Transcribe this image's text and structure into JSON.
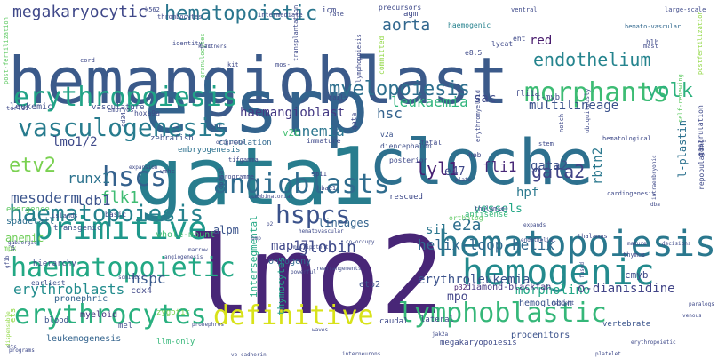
{
  "words": [
    {
      "text": "hemangioblast",
      "color": "#3b5a8a"
    },
    {
      "text": "etsrp",
      "color": "#33638d"
    },
    {
      "text": "gata1",
      "color": "#287d8e"
    },
    {
      "text": "cloche",
      "color": "#2d708e"
    },
    {
      "text": "lmo2",
      "color": "#482677"
    },
    {
      "text": "hematopoiesis",
      "color": "#2a788e"
    },
    {
      "text": "hemogenic",
      "color": "#238a8d"
    },
    {
      "text": "haematopoietic",
      "color": "#22a884"
    },
    {
      "text": "erythropoiesis",
      "color": "#20a386"
    },
    {
      "text": "primitive",
      "color": "#1f988b"
    },
    {
      "text": "definitive",
      "color": "#d8e219"
    },
    {
      "text": "lymphoblastic",
      "color": "#35b779"
    },
    {
      "text": "erythrocytes",
      "color": "#2ab07f"
    },
    {
      "text": "morphants",
      "color": "#3dbc74"
    },
    {
      "text": "angioblasts",
      "color": "#2f6c8e"
    },
    {
      "text": "hscs",
      "color": "#34618d"
    },
    {
      "text": "vasculogenesis",
      "color": "#287c8e"
    },
    {
      "text": "haematopoiesis",
      "color": "#26828e"
    },
    {
      "text": "hspcs",
      "color": "#3b528b"
    },
    {
      "text": "myelopoiesis",
      "color": "#2e6f8e"
    },
    {
      "text": "endothelium",
      "color": "#25848e"
    },
    {
      "text": "hematopoietic",
      "color": "#2a768e"
    },
    {
      "text": "megakaryocytic",
      "color": "#3f4889"
    },
    {
      "text": "aorta",
      "color": "#31678e"
    },
    {
      "text": "yolk",
      "color": "#2db27d"
    },
    {
      "text": "gata2",
      "color": "#414487"
    },
    {
      "text": "lyl1",
      "color": "#482173"
    },
    {
      "text": "etv2",
      "color": "#7ad151"
    },
    {
      "text": "e2a",
      "color": "#2e6e8e"
    },
    {
      "text": "helix-loop-helix",
      "color": "#31688e"
    },
    {
      "text": "globin",
      "color": "#3e4a89"
    },
    {
      "text": "flk1",
      "color": "#3fbc73"
    },
    {
      "text": "runx1",
      "color": "#2c728e"
    },
    {
      "text": "mesoderm",
      "color": "#3a548c"
    },
    {
      "text": "ldb1",
      "color": "#3b518b"
    },
    {
      "text": "lmo1/2",
      "color": "#3e4989"
    },
    {
      "text": "anemia",
      "color": "#2b758e"
    },
    {
      "text": "haemangioblast",
      "color": "#443983"
    },
    {
      "text": "hsc",
      "color": "#33628d"
    },
    {
      "text": "leukaemia",
      "color": "#2fb47c"
    },
    {
      "text": "multilineage",
      "color": "#3b528b"
    },
    {
      "text": "sac",
      "color": "#3e4a89"
    },
    {
      "text": "hspc",
      "color": "#38588c"
    },
    {
      "text": "erythroblasts",
      "color": "#228c8d"
    },
    {
      "text": "erythroleukemia",
      "color": "#3b528b"
    },
    {
      "text": "morpholino",
      "color": "#21a685"
    },
    {
      "text": "o-dianisidine",
      "color": "#414487"
    },
    {
      "text": "vessels",
      "color": "#22a785"
    },
    {
      "text": "hpf",
      "color": "#2a788e"
    },
    {
      "text": "fli1",
      "color": "#482878"
    },
    {
      "text": "sil",
      "color": "#2a768e"
    },
    {
      "text": "lineages",
      "color": "#33638d"
    },
    {
      "text": "map17",
      "color": "#3f4788"
    },
    {
      "text": "alpm",
      "color": "#3a538b"
    },
    {
      "text": "anemic",
      "color": "#6ece58"
    },
    {
      "text": "v2b",
      "color": "#43bf71"
    },
    {
      "text": "mpo",
      "color": "#414487"
    },
    {
      "text": "cmyb",
      "color": "#3e4a89"
    },
    {
      "text": "e47",
      "color": "#3f4788"
    },
    {
      "text": "gata2",
      "color": "#3b528b"
    },
    {
      "text": "red",
      "color": "#481b6d"
    },
    {
      "text": "rbtn2",
      "color": "#2a788e"
    },
    {
      "text": "l-plastin",
      "color": "#2c718e"
    },
    {
      "text": "cdx4",
      "color": "#3f4788"
    },
    {
      "text": "myeloid",
      "color": "#46337e"
    },
    {
      "text": "mel",
      "color": "#3d4d8a"
    },
    {
      "text": "zygotic",
      "color": "#7ad151"
    },
    {
      "text": "leukemogenesis",
      "color": "#33638d"
    },
    {
      "text": "llm-only",
      "color": "#35b779"
    },
    {
      "text": "lateral",
      "color": "#3e4989"
    },
    {
      "text": "caudal",
      "color": "#3e4989"
    },
    {
      "text": "vertebrate",
      "color": "#3a548c"
    },
    {
      "text": "progenitors",
      "color": "#3b528b"
    },
    {
      "text": "megakaryopoiesis",
      "color": "#3e4a89"
    },
    {
      "text": "diamond-blackfan",
      "color": "#453781"
    },
    {
      "text": "p32",
      "color": "#481a6c"
    },
    {
      "text": "eto2",
      "color": "#3b528b"
    },
    {
      "text": "hemoglobin",
      "color": "#3b528b"
    },
    {
      "text": "thymocytes",
      "color": "#20a386"
    },
    {
      "text": "ontogeny",
      "color": "#31688e"
    },
    {
      "text": "intersegmental",
      "color": "#22a884"
    },
    {
      "text": "earliest",
      "color": "#3d4e8a"
    },
    {
      "text": "pronephric",
      "color": "#33638d"
    },
    {
      "text": "hierarchy",
      "color": "#3d4e8a"
    },
    {
      "text": "whole-mount",
      "color": "#40bd72"
    },
    {
      "text": "blood",
      "color": "#3b528b"
    },
    {
      "text": "ets",
      "color": "#90d743"
    },
    {
      "text": "spadetail",
      "color": "#2e6e8e"
    },
    {
      "text": "mpx",
      "color": "#75d054"
    },
    {
      "text": "emergence",
      "color": "#5ec962"
    },
    {
      "text": "embryogenesis",
      "color": "#2c718e"
    },
    {
      "text": "basic",
      "color": "#3e4989"
    },
    {
      "text": "transgenic",
      "color": "#3b528b"
    },
    {
      "text": "zebrafish",
      "color": "#3b528b"
    },
    {
      "text": "vasculature",
      "color": "#3d4e8a"
    },
    {
      "text": "leukemic",
      "color": "#3d4e8a"
    },
    {
      "text": "circulation",
      "color": "#31688e"
    },
    {
      "text": "cht",
      "color": "#3b528b"
    },
    {
      "text": "fetal",
      "color": "#3e4989"
    },
    {
      "text": "posterior",
      "color": "#3e4989"
    },
    {
      "text": "immature",
      "color": "#3e4989"
    },
    {
      "text": "v2a",
      "color": "#3b528b"
    },
    {
      "text": "antisense",
      "color": "#35b779"
    },
    {
      "text": "rescued",
      "color": "#3e4989"
    },
    {
      "text": "ortholog",
      "color": "#5ec962"
    },
    {
      "text": "heb",
      "color": "#3e4989"
    },
    {
      "text": "diencephalon",
      "color": "#3d4e8a"
    },
    {
      "text": "gata",
      "color": "#3e4989"
    },
    {
      "text": "committed",
      "color": "#90d743"
    },
    {
      "text": "agm",
      "color": "#3e4989"
    },
    {
      "text": "icm",
      "color": "#3e4989"
    },
    {
      "text": "precursors",
      "color": "#3e4989"
    },
    {
      "text": "haemogenic",
      "color": "#26828e"
    },
    {
      "text": "c-myb",
      "color": "#3e4989"
    },
    {
      "text": "fli1a",
      "color": "#3e4989"
    },
    {
      "text": "lycat",
      "color": "#3e4989"
    },
    {
      "text": "eht",
      "color": "#3e4989"
    },
    {
      "text": "e8.5",
      "color": "#3e4989"
    },
    {
      "text": "ventral",
      "color": "#3e4989"
    },
    {
      "text": "fate",
      "color": "#3e4989"
    },
    {
      "text": "intermediate",
      "color": "#3e4989"
    },
    {
      "text": "thrombocytes",
      "color": "#3e4989"
    },
    {
      "text": "k562",
      "color": "#3e4989"
    },
    {
      "text": "hemato-vascular",
      "color": "#31688e"
    },
    {
      "text": "hlh",
      "color": "#3e4989"
    },
    {
      "text": "mast",
      "color": "#3e4989"
    },
    {
      "text": "large-scale",
      "color": "#3e4989"
    },
    {
      "text": "postfertilization",
      "color": "#90d743"
    },
    {
      "text": "self-renewing",
      "color": "#5ec962"
    },
    {
      "text": "gastrulation",
      "color": "#3e4989"
    },
    {
      "text": "repopulating",
      "color": "#3e4989"
    },
    {
      "text": "stem",
      "color": "#3e4989"
    },
    {
      "text": "hematological",
      "color": "#3e4989"
    },
    {
      "text": "ubiquitously",
      "color": "#3e4989"
    },
    {
      "text": "notch",
      "color": "#3e4989"
    },
    {
      "text": "granulocytes",
      "color": "#5ec962"
    },
    {
      "text": "hoxa9a",
      "color": "#3e4989"
    },
    {
      "text": "cd34",
      "color": "#3e4989"
    },
    {
      "text": "embryos",
      "color": "#3e4989"
    },
    {
      "text": "terl19",
      "color": "#3e4989"
    },
    {
      "text": "post-fertilization",
      "color": "#5ec962"
    },
    {
      "text": "identity",
      "color": "#3e4989"
    },
    {
      "text": "cord",
      "color": "#3e4989"
    },
    {
      "text": "kit",
      "color": "#3e4989"
    },
    {
      "text": "lymphopoiesis",
      "color": "#3e4989"
    },
    {
      "text": "mos-",
      "color": "#3e4989"
    },
    {
      "text": "transplantation",
      "color": "#3e4989"
    },
    {
      "text": "erythromyeloid",
      "color": "#3e4989"
    },
    {
      "text": "tails",
      "color": "#3e4989"
    },
    {
      "text": "tifgamma",
      "color": "#3e4989"
    },
    {
      "text": "programme",
      "color": "#3e4989"
    },
    {
      "text": "hbae1",
      "color": "#3e4989"
    },
    {
      "text": "spi1",
      "color": "#3e4989"
    },
    {
      "text": "vmhc",
      "color": "#3e4989"
    },
    {
      "text": "islands",
      "color": "#3e4989"
    },
    {
      "text": "gabaergic",
      "color": "#3e4989"
    },
    {
      "text": "combinatorial",
      "color": "#3e4989"
    },
    {
      "text": "dorsal",
      "color": "#3e4989"
    },
    {
      "text": "thalamic",
      "color": "#3e4989"
    },
    {
      "text": "thalamus",
      "color": "#3e4989"
    },
    {
      "text": "cardiogenesis",
      "color": "#3e4989"
    },
    {
      "text": "intraembryonic",
      "color": "#3e4989"
    },
    {
      "text": "fused",
      "color": "#3e4989"
    },
    {
      "text": "thymus",
      "color": "#3e4989"
    },
    {
      "text": "expands",
      "color": "#3e4989"
    },
    {
      "text": "dba",
      "color": "#3e4989"
    },
    {
      "text": "co-occupy",
      "color": "#3e4989"
    },
    {
      "text": "hematovascular",
      "color": "#3e4989"
    },
    {
      "text": "rearrangements",
      "color": "#3e4989"
    },
    {
      "text": "endothelial",
      "color": "#3e4989"
    },
    {
      "text": "mature",
      "color": "#3e4989"
    },
    {
      "text": "decisions",
      "color": "#3e4989"
    },
    {
      "text": "multipotent",
      "color": "#3e4989"
    },
    {
      "text": "powerful",
      "color": "#3e4989"
    },
    {
      "text": "marrow",
      "color": "#3e4989"
    },
    {
      "text": "pronephros",
      "color": "#3e4989"
    },
    {
      "text": "nascent",
      "color": "#3e4989"
    },
    {
      "text": "dispensable",
      "color": "#90d743"
    },
    {
      "text": "programs",
      "color": "#3e4989"
    },
    {
      "text": "waves",
      "color": "#3e4989"
    },
    {
      "text": "jak2a",
      "color": "#3e4989"
    },
    {
      "text": "interneurons",
      "color": "#3e4989"
    },
    {
      "text": "platelet",
      "color": "#3e4989"
    },
    {
      "text": "erythropoietic",
      "color": "#3e4989"
    },
    {
      "text": "venous",
      "color": "#3e4989"
    },
    {
      "text": "paralogs",
      "color": "#3e4989"
    },
    {
      "text": "ve-cadherin",
      "color": "#3e4989"
    },
    {
      "text": "somitic",
      "color": "#3e4989"
    },
    {
      "text": "angiogenesis",
      "color": "#3e4989"
    },
    {
      "text": "bmp",
      "color": "#3e4989"
    },
    {
      "text": "p2",
      "color": "#3e4989"
    },
    {
      "text": "partners",
      "color": "#3e4989"
    },
    {
      "text": "originate",
      "color": "#3e4989"
    },
    {
      "text": "expansion",
      "color": "#3e4989"
    },
    {
      "text": "gf1b",
      "color": "#3e4989"
    },
    {
      "text": "qa1",
      "color": "#3e4989"
    },
    {
      "text": "plate",
      "color": "#3e4989"
    },
    {
      "text": "stl",
      "color": "#3e4989"
    },
    {
      "text": "klf1",
      "color": "#3e4989"
    },
    {
      "text": "ets",
      "color": "#3e4989"
    }
  ]
}
